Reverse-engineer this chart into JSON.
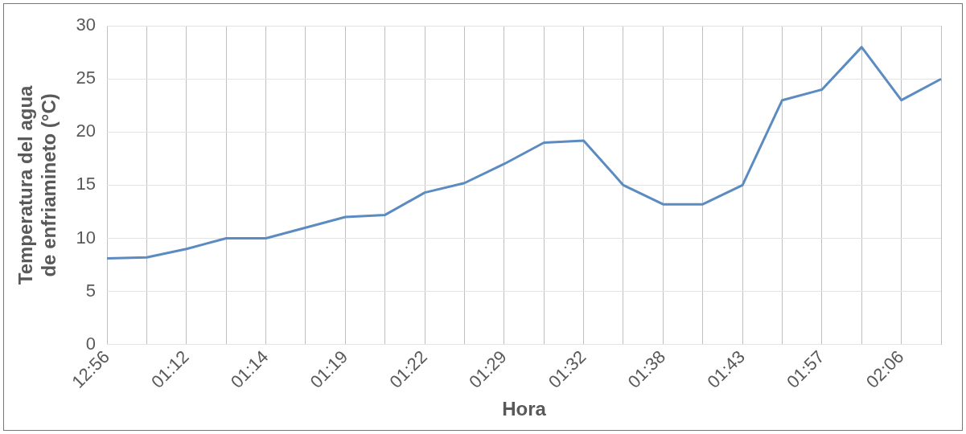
{
  "chart_data": {
    "type": "line",
    "xlabel": "Hora",
    "ylabel": "Temperatura del agua de enfriamineto (°C)",
    "categories": [
      "12:56",
      null,
      "01:12",
      null,
      "01:14",
      null,
      "01:19",
      null,
      "01:22",
      null,
      "01:29",
      null,
      "01:32",
      null,
      "01:38",
      null,
      "01:43",
      null,
      "01:57",
      null,
      "02:06",
      null
    ],
    "series": [
      {
        "color": "#5b8bc0",
        "values": [
          8.1,
          8.2,
          9,
          10,
          10,
          11,
          12,
          12.2,
          14.3,
          15.2,
          17,
          19,
          19.2,
          15,
          13.2,
          13.2,
          15,
          23,
          24,
          28,
          23,
          25
        ]
      }
    ],
    "ylim": [
      0,
      30
    ],
    "yticks": [
      0,
      5,
      10,
      15,
      20,
      25,
      30
    ],
    "grid": true,
    "legend": false,
    "marker": "none",
    "line_style": "solid"
  }
}
